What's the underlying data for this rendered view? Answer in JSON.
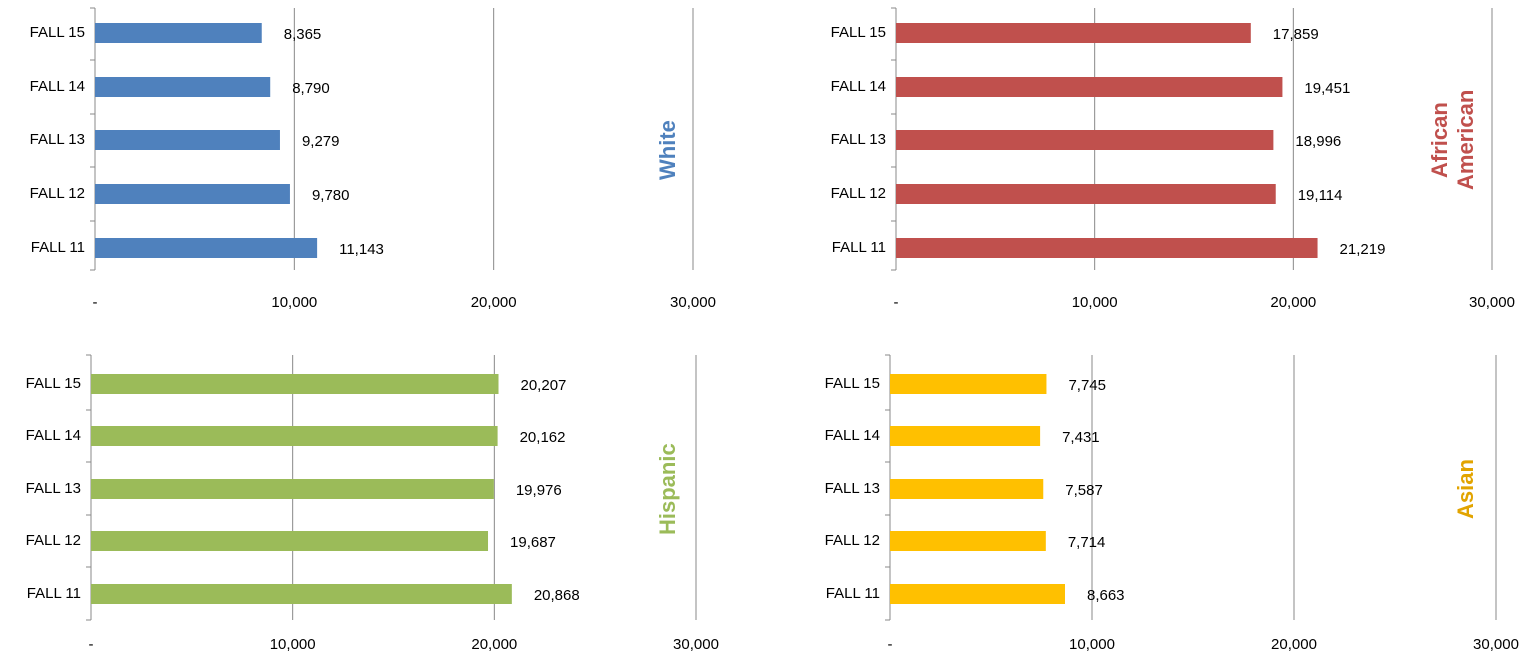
{
  "chart_data": [
    {
      "type": "bar",
      "orientation": "horizontal",
      "label": "White",
      "label_color": "#4f81bd",
      "color": "#4f81bd",
      "categories": [
        "FALL 15",
        "FALL 14",
        "FALL 13",
        "FALL 12",
        "FALL 11"
      ],
      "values": [
        8365,
        8790,
        9279,
        9780,
        11143
      ],
      "value_labels": [
        "8,365",
        "8,790",
        "9,279",
        "9,780",
        "11,143"
      ],
      "xlim": [
        0,
        30000
      ],
      "xticks": [
        {
          "value": 0,
          "label": "-"
        },
        {
          "value": 10000,
          "label": "10,000"
        },
        {
          "value": 20000,
          "label": "20,000"
        },
        {
          "value": 30000,
          "label": "30,000"
        }
      ],
      "grid": true
    },
    {
      "type": "bar",
      "orientation": "horizontal",
      "label": "African American",
      "label_color": "#c0504d",
      "color": "#c0504d",
      "categories": [
        "FALL 15",
        "FALL 14",
        "FALL 13",
        "FALL 12",
        "FALL 11"
      ],
      "values": [
        17859,
        19451,
        18996,
        19114,
        21219
      ],
      "value_labels": [
        "17,859",
        "19,451",
        "18,996",
        "19,114",
        "21,219"
      ],
      "xlim": [
        0,
        30000
      ],
      "xticks": [
        {
          "value": 0,
          "label": "-"
        },
        {
          "value": 10000,
          "label": "10,000"
        },
        {
          "value": 20000,
          "label": "20,000"
        },
        {
          "value": 30000,
          "label": "30,000"
        }
      ],
      "grid": true
    },
    {
      "type": "bar",
      "orientation": "horizontal",
      "label": "Hispanic",
      "label_color": "#9bbb59",
      "color": "#9bbb59",
      "categories": [
        "FALL 15",
        "FALL 14",
        "FALL 13",
        "FALL 12",
        "FALL 11"
      ],
      "values": [
        20207,
        20162,
        19976,
        19687,
        20868
      ],
      "value_labels": [
        "20,207",
        "20,162",
        "19,976",
        "19,687",
        "20,868"
      ],
      "xlim": [
        0,
        30000
      ],
      "xticks": [
        {
          "value": 0,
          "label": "-"
        },
        {
          "value": 10000,
          "label": "10,000"
        },
        {
          "value": 20000,
          "label": "20,000"
        },
        {
          "value": 30000,
          "label": "30,000"
        }
      ],
      "grid": true
    },
    {
      "type": "bar",
      "orientation": "horizontal",
      "label": "Asian",
      "label_color": "#e2a400",
      "color": "#ffc000",
      "categories": [
        "FALL 15",
        "FALL 14",
        "FALL 13",
        "FALL 12",
        "FALL 11"
      ],
      "values": [
        7745,
        7431,
        7587,
        7714,
        8663
      ],
      "value_labels": [
        "7,745",
        "7,431",
        "7,587",
        "7,714",
        "8,663"
      ],
      "xlim": [
        0,
        30000
      ],
      "xticks": [
        {
          "value": 0,
          "label": "-"
        },
        {
          "value": 10000,
          "label": "10,000"
        },
        {
          "value": 20000,
          "label": "20,000"
        },
        {
          "value": 30000,
          "label": "30,000"
        }
      ],
      "grid": true
    }
  ]
}
